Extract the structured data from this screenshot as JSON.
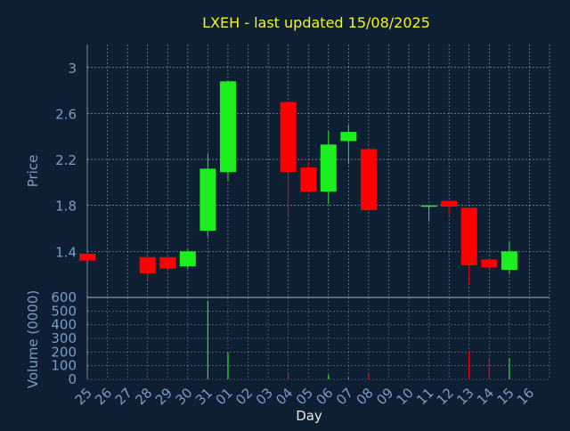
{
  "colors": {
    "background": "#0f1f33",
    "title": "#f4f41e",
    "axis_text": "#7c9bc2",
    "axis_label": "#e5e5e5",
    "grid": "#c8d0dc",
    "up": "#1dee1d",
    "down": "#ff0000"
  },
  "chart_data": [
    {
      "type": "candlestick",
      "title": "LXEH - last updated 15/08/2025",
      "ylabel": "Price",
      "ylim": [
        1.0,
        3.2
      ],
      "yticks": [
        "1.4",
        "1.8",
        "2.2",
        "2.6",
        "3"
      ],
      "grid": true,
      "categories": [
        "25",
        "26",
        "27",
        "28",
        "29",
        "30",
        "31",
        "01",
        "02",
        "03",
        "04",
        "05",
        "06",
        "07",
        "08",
        "09",
        "10",
        "11",
        "12",
        "13",
        "14",
        "15",
        "16"
      ],
      "candles": [
        {
          "x": "25",
          "open": 1.38,
          "high": 1.39,
          "low": 1.32,
          "close": 1.32
        },
        {
          "x": "28",
          "open": 1.35,
          "high": 1.35,
          "low": 1.15,
          "close": 1.21
        },
        {
          "x": "29",
          "open": 1.35,
          "high": 1.35,
          "low": 1.24,
          "close": 1.25
        },
        {
          "x": "30",
          "open": 1.27,
          "high": 1.42,
          "low": 1.25,
          "close": 1.4
        },
        {
          "x": "31",
          "open": 1.58,
          "high": 2.25,
          "low": 1.53,
          "close": 2.12
        },
        {
          "x": "01",
          "open": 2.09,
          "high": 2.89,
          "low": 2.01,
          "close": 2.88
        },
        {
          "x": "04",
          "open": 2.7,
          "high": 2.7,
          "low": 1.7,
          "close": 2.09
        },
        {
          "x": "05",
          "open": 2.13,
          "high": 2.18,
          "low": 1.92,
          "close": 1.92
        },
        {
          "x": "06",
          "open": 1.92,
          "high": 2.45,
          "low": 1.81,
          "close": 2.33
        },
        {
          "x": "07",
          "open": 2.36,
          "high": 2.5,
          "low": 2.16,
          "close": 2.44
        },
        {
          "x": "08",
          "open": 2.29,
          "high": 2.29,
          "low": 1.75,
          "close": 1.76
        },
        {
          "x": "11",
          "open": 1.79,
          "high": 1.8,
          "low": 1.66,
          "close": 1.8
        },
        {
          "x": "12",
          "open": 1.84,
          "high": 1.84,
          "low": 1.72,
          "close": 1.79
        },
        {
          "x": "13",
          "open": 1.78,
          "high": 1.78,
          "low": 1.12,
          "close": 1.28
        },
        {
          "x": "14",
          "open": 1.33,
          "high": 1.33,
          "low": 1.24,
          "close": 1.26
        },
        {
          "x": "15",
          "open": 1.24,
          "high": 1.48,
          "low": 1.2,
          "close": 1.4
        }
      ]
    },
    {
      "type": "bar",
      "ylabel": "Volume (0000)",
      "xlabel": "Day",
      "ylim": [
        0,
        600
      ],
      "yticks": [
        "0",
        "100",
        "200",
        "300",
        "400",
        "500",
        "600"
      ],
      "grid": true,
      "categories": [
        "25",
        "26",
        "27",
        "28",
        "29",
        "30",
        "31",
        "01",
        "02",
        "03",
        "04",
        "05",
        "06",
        "07",
        "08",
        "09",
        "10",
        "11",
        "12",
        "13",
        "14",
        "15",
        "16"
      ],
      "bars": [
        {
          "x": "25",
          "value": 2,
          "dir": "down"
        },
        {
          "x": "28",
          "value": 5,
          "dir": "down"
        },
        {
          "x": "29",
          "value": 3,
          "dir": "down"
        },
        {
          "x": "30",
          "value": 5,
          "dir": "up"
        },
        {
          "x": "31",
          "value": 575,
          "dir": "up"
        },
        {
          "x": "01",
          "value": 195,
          "dir": "up"
        },
        {
          "x": "04",
          "value": 50,
          "dir": "down"
        },
        {
          "x": "05",
          "value": 5,
          "dir": "down"
        },
        {
          "x": "06",
          "value": 35,
          "dir": "up"
        },
        {
          "x": "07",
          "value": 10,
          "dir": "up"
        },
        {
          "x": "08",
          "value": 45,
          "dir": "down"
        },
        {
          "x": "11",
          "value": 2,
          "dir": "up"
        },
        {
          "x": "12",
          "value": 3,
          "dir": "down"
        },
        {
          "x": "13",
          "value": 205,
          "dir": "down"
        },
        {
          "x": "14",
          "value": 150,
          "dir": "down"
        },
        {
          "x": "15",
          "value": 155,
          "dir": "up"
        }
      ]
    }
  ]
}
